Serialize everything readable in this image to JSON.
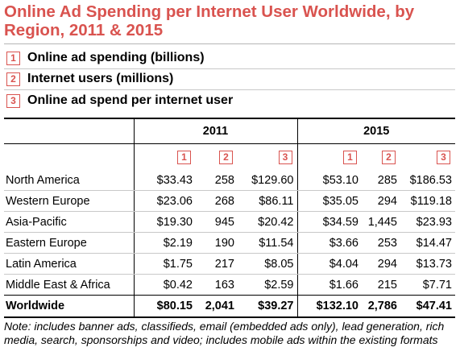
{
  "title": "Online Ad Spending per Internet User Worldwide, by Region, 2011 & 2015",
  "legend": [
    {
      "num": "1",
      "label": "Online ad spending (billions)"
    },
    {
      "num": "2",
      "label": "Internet users (millions)"
    },
    {
      "num": "3",
      "label": "Online ad spend per internet user"
    }
  ],
  "years": [
    "2011",
    "2015"
  ],
  "column_nums": [
    "1",
    "2",
    "3",
    "1",
    "2",
    "3"
  ],
  "rows": [
    {
      "region": "North America",
      "values": [
        "$33.43",
        "258",
        "$129.60",
        "$53.10",
        "285",
        "$186.53"
      ]
    },
    {
      "region": "Western Europe",
      "values": [
        "$23.06",
        "268",
        "$86.11",
        "$35.05",
        "294",
        "$119.18"
      ]
    },
    {
      "region": "Asia-Pacific",
      "values": [
        "$19.30",
        "945",
        "$20.42",
        "$34.59",
        "1,445",
        "$23.93"
      ]
    },
    {
      "region": "Eastern Europe",
      "values": [
        "$2.19",
        "190",
        "$11.54",
        "$3.66",
        "253",
        "$14.47"
      ]
    },
    {
      "region": "Latin America",
      "values": [
        "$1.75",
        "217",
        "$8.05",
        "$4.04",
        "294",
        "$13.73"
      ]
    },
    {
      "region": "Middle East & Africa",
      "values": [
        "$0.42",
        "163",
        "$2.59",
        "$1.66",
        "215",
        "$7.71"
      ]
    }
  ],
  "total": {
    "region": "Worldwide",
    "values": [
      "$80.15",
      "2,041",
      "$39.27",
      "$132.10",
      "2,786",
      "$47.41"
    ]
  },
  "note": "Note: includes banner ads, classifieds, email (embedded ads only), lead generation, rich media, search, sponsorships and video; includes mobile ads within the existing formats",
  "colors": {
    "accent": "#d9534f"
  }
}
